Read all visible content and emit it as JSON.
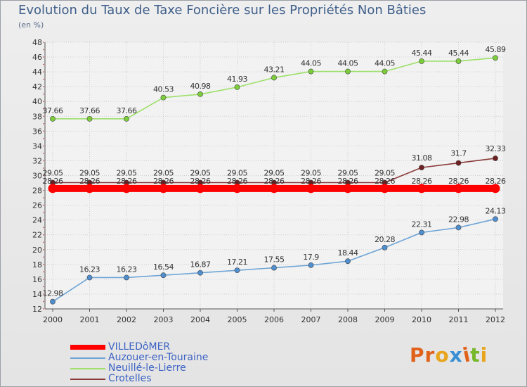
{
  "title": "Evolution du Taux de Taxe Foncière sur les Propriétés Non Bâties",
  "subtitle": "(en %)",
  "logo": {
    "text": "Proxiti",
    "colors": [
      "#e0621a",
      "#e0621a",
      "#e8a51c",
      "#3a8fd4",
      "#e0621a",
      "#76b82a",
      "#e8a51c"
    ]
  },
  "chart_data": {
    "type": "line",
    "x": [
      "2000",
      "2001",
      "2002",
      "2003",
      "2004",
      "2005",
      "2006",
      "2007",
      "2008",
      "2009",
      "2010",
      "2011",
      "2012"
    ],
    "ylim": [
      12,
      48
    ],
    "yticks": [
      12,
      14,
      16,
      18,
      20,
      22,
      24,
      26,
      28,
      30,
      32,
      34,
      36,
      38,
      40,
      42,
      44,
      46,
      48
    ],
    "grid": true,
    "legend_position": "bottom-left",
    "series": [
      {
        "name": "VILLEDôMER",
        "color": "#ff0000",
        "style": "thick",
        "values": [
          28.26,
          28.26,
          28.26,
          28.26,
          28.26,
          28.26,
          28.26,
          28.26,
          28.26,
          28.26,
          28.26,
          28.26,
          28.26
        ],
        "labels": [
          "28.26",
          "28.26",
          "28.26",
          "28.26",
          "28.26",
          "28.26",
          "28.26",
          "28.26",
          "28.26",
          "28.26",
          "28.26",
          "28.26",
          "28.26"
        ]
      },
      {
        "name": "Auzouer-en-Touraine",
        "color": "#6fa5d6",
        "marker": "#4f8fd0",
        "values": [
          12.98,
          16.23,
          16.23,
          16.54,
          16.87,
          17.21,
          17.55,
          17.9,
          18.44,
          20.28,
          22.31,
          22.98,
          24.13
        ],
        "labels": [
          "12.98",
          "16.23",
          "16.23",
          "16.54",
          "16.87",
          "17.21",
          "17.55",
          "17.9",
          "18.44",
          "20.28",
          "22.31",
          "22.98",
          "24.13"
        ]
      },
      {
        "name": "Neuillé-le-Lierre",
        "color": "#9ee06a",
        "marker": "#7ccd3a",
        "values": [
          37.66,
          37.66,
          37.66,
          40.53,
          40.98,
          41.93,
          43.21,
          44.05,
          44.05,
          44.05,
          45.44,
          45.44,
          45.89
        ],
        "labels": [
          "37.66",
          "37.66",
          "37.66",
          "40.53",
          "40.98",
          "41.93",
          "43.21",
          "44.05",
          "44.05",
          "44.05",
          "45.44",
          "45.44",
          "45.89"
        ]
      },
      {
        "name": "Crotelles",
        "color": "#8b3a3a",
        "marker": "#6e1f1f",
        "values": [
          29.05,
          29.05,
          29.05,
          29.05,
          29.05,
          29.05,
          29.05,
          29.05,
          29.05,
          29.05,
          31.08,
          31.7,
          32.33
        ],
        "labels": [
          "29.05",
          "29.05",
          "29.05",
          "29.05",
          "29.05",
          "29.05",
          "29.05",
          "29.05",
          "29.05",
          "29.05",
          "31.08",
          "31.7",
          "32.33"
        ]
      }
    ]
  }
}
